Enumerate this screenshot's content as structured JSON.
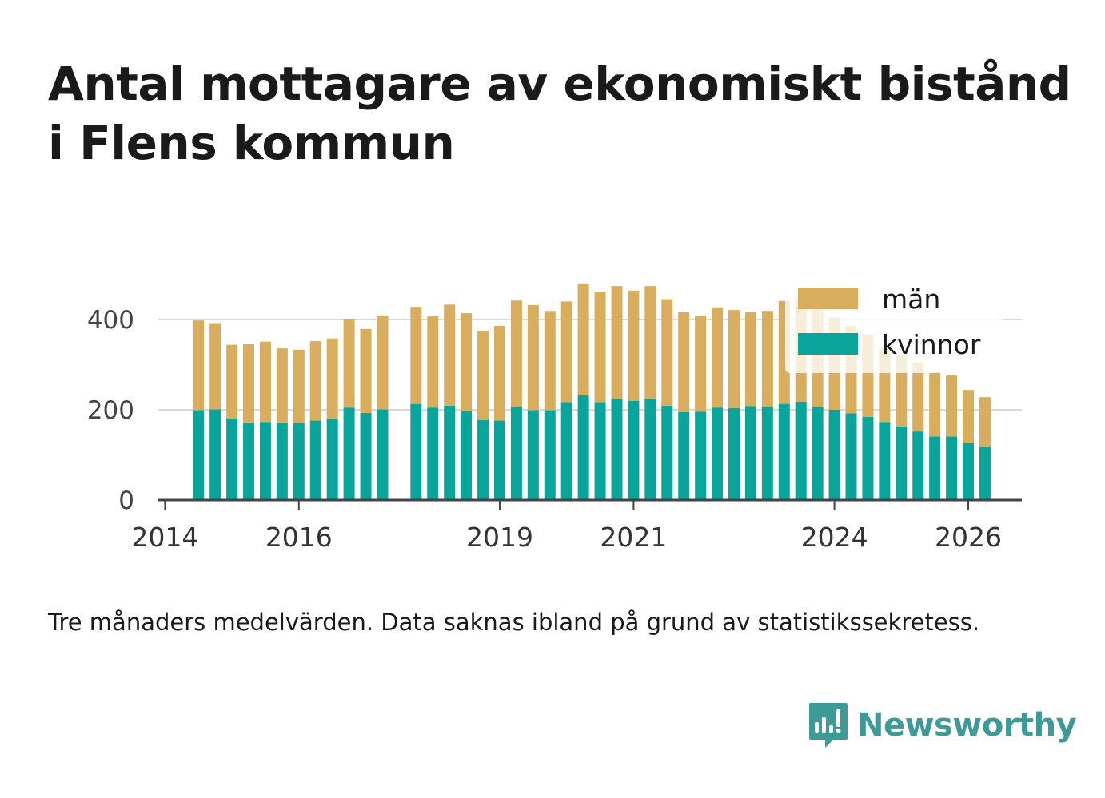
{
  "title_lines": [
    "Antal mottagare av ekonomiskt bistånd",
    "i Flens kommun"
  ],
  "subtitle": "Tre månaders medelvärden. Data saknas ibland på grund av statistikssekretess.",
  "brand": {
    "name": "Newsworthy",
    "color": "#3e9a96"
  },
  "colors": {
    "kvinnor": "#0aa59a",
    "man": "#d8ad5e",
    "grid": "#d9d9d9",
    "axis": "#444444"
  },
  "chart_data": {
    "type": "bar",
    "stacked": true,
    "title": "Antal mottagare av ekonomiskt bistånd i Flens kommun",
    "xlabel": "",
    "ylabel": "",
    "ylim": [
      0,
      500
    ],
    "yticks": [
      0,
      200,
      400
    ],
    "xlim": [
      2013.9,
      2026.8
    ],
    "xticks": [
      {
        "value": 2014,
        "label": "2014"
      },
      {
        "value": 2016,
        "label": "2016"
      },
      {
        "value": 2019,
        "label": "2019"
      },
      {
        "value": 2021,
        "label": "2021"
      },
      {
        "value": 2024,
        "label": "2024"
      },
      {
        "value": 2026,
        "label": "2026"
      }
    ],
    "legend_position": "top-right",
    "series": [
      {
        "name": "kvinnor",
        "values": [
          199,
          201,
          181,
          172,
          173,
          172,
          170,
          176,
          180,
          205,
          193,
          201,
          null,
          213,
          205,
          209,
          197,
          177,
          176,
          207,
          199,
          199,
          217,
          232,
          217,
          224,
          220,
          225,
          209,
          195,
          196,
          205,
          204,
          208,
          206,
          213,
          218,
          206,
          200,
          192,
          184,
          173,
          163,
          152,
          141,
          141,
          126,
          118
        ]
      },
      {
        "name": "män",
        "values": [
          199,
          191,
          163,
          173,
          178,
          164,
          163,
          176,
          178,
          197,
          186,
          208,
          null,
          215,
          202,
          224,
          217,
          198,
          210,
          235,
          233,
          220,
          223,
          248,
          244,
          250,
          244,
          249,
          236,
          221,
          212,
          222,
          217,
          208,
          213,
          228,
          225,
          216,
          204,
          194,
          183,
          163,
          159,
          152,
          142,
          135,
          118,
          110
        ]
      }
    ],
    "x": [
      2014.5,
      2014.75,
      2015.0,
      2015.25,
      2015.5,
      2015.75,
      2016.0,
      2016.25,
      2016.5,
      2016.75,
      2017.0,
      2017.25,
      2017.5,
      2017.75,
      2018.0,
      2018.25,
      2018.5,
      2018.75,
      2019.0,
      2019.25,
      2019.5,
      2019.75,
      2020.0,
      2020.25,
      2020.5,
      2020.75,
      2021.0,
      2021.25,
      2021.5,
      2021.75,
      2022.0,
      2022.25,
      2022.5,
      2022.75,
      2023.0,
      2023.25,
      2023.5,
      2023.75,
      2024.0,
      2024.25,
      2024.5,
      2024.75,
      2025.0,
      2025.25,
      2025.5,
      2025.75,
      2026.0,
      2026.25
    ]
  }
}
